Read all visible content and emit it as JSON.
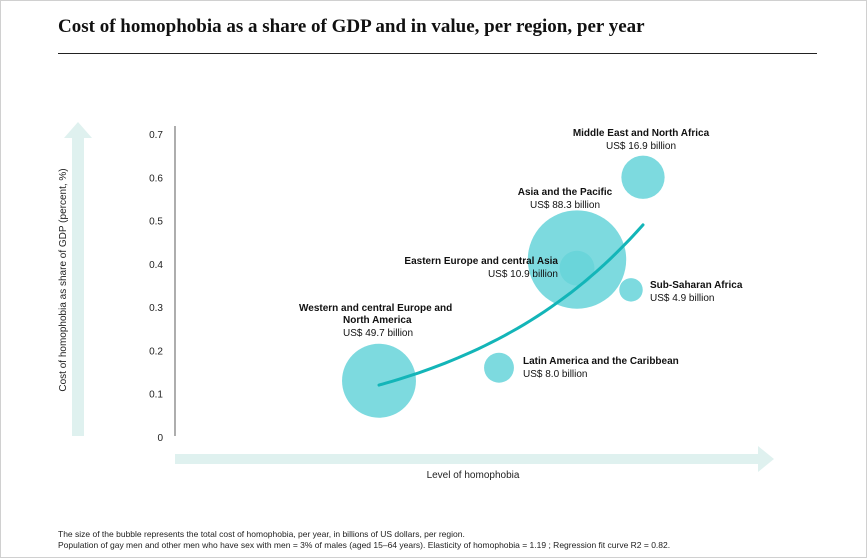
{
  "title": "Cost of homophobia as a share of GDP and in value, per region, per year",
  "footnote": {
    "line1": "The size of the bubble  represents the total cost of  homophobia,  per year, in  billions of US dollars,  per region.",
    "line2": "Population of gay men and other men who have sex with men = 3% of males (aged 15–64 years). Elasticity  of homophobia = 1.19 ; Regression  fit curve R2 = 0.82."
  },
  "colors": {
    "bubble": "#66d4d9",
    "curve": "#13b5b8",
    "arrow": "#dff1ef",
    "text": "#1a1a1a"
  },
  "chart_data": {
    "type": "scatter",
    "title": "Cost of homophobia as a share of GDP and in value, per region, per year",
    "xlabel": "Level of homophobia",
    "ylabel": "Cost of homophobia as share of GDP (percent, %)",
    "ylim": [
      0,
      0.7
    ],
    "yticks": [
      "0",
      "0.1",
      "0.2",
      "0.3",
      "0.4",
      "0.5",
      "0.6",
      "0.7"
    ],
    "x_axis_numeric": false,
    "xlim": [
      0,
      1
    ],
    "grid": false,
    "series": [
      {
        "name": "",
        "points": [
          {
            "label": "Western and central Europe and",
            "label2": "North America",
            "value_text": "US$ 49.7 billion",
            "x": 0.34,
            "y": 0.13,
            "size": 49.7
          },
          {
            "label": "Latin America and the Caribbean",
            "value_text": "US$ 8.0 billion",
            "x": 0.54,
            "y": 0.16,
            "size": 8.0
          },
          {
            "label": "Asia and the Pacific",
            "value_text": "US$ 88.3 billion",
            "x": 0.67,
            "y": 0.41,
            "size": 88.3
          },
          {
            "label": "Eastern Europe and central Asia",
            "value_text": "US$ 10.9 billion",
            "x": 0.67,
            "y": 0.39,
            "size": 10.9
          },
          {
            "label": "Sub-Saharan Africa",
            "value_text": "US$ 4.9 billion",
            "x": 0.76,
            "y": 0.34,
            "size": 4.9
          },
          {
            "label": "Middle East and North Africa",
            "value_text": "US$ 16.9 billion",
            "x": 0.78,
            "y": 0.6,
            "size": 16.9
          }
        ]
      }
    ],
    "fit_curve": {
      "type": "exponential",
      "x": [
        0.34,
        0.78
      ],
      "y": [
        0.12,
        0.49
      ]
    }
  }
}
